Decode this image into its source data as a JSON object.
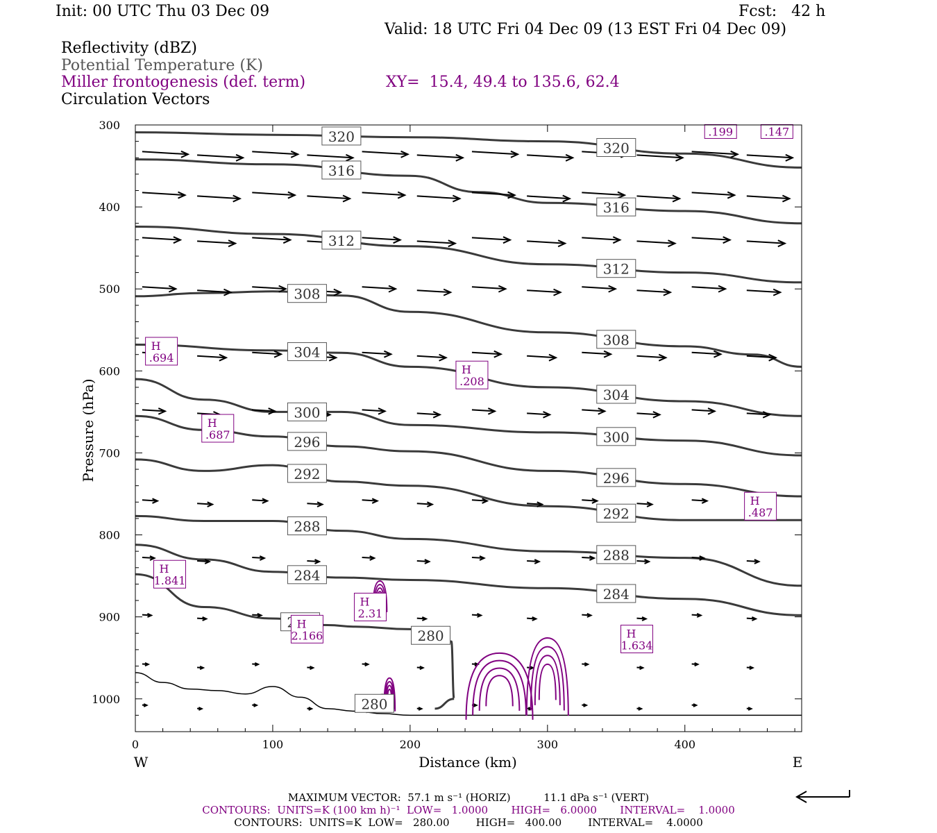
{
  "header": {
    "init": "Init: 00 UTC Thu 03 Dec 09",
    "fcst": "Fcst:   42 h",
    "valid": "Valid: 18 UTC Fri 04 Dec 09 (13 EST Fri 04 Dec 09)",
    "field1": "Reflectivity (dBZ)",
    "field2": "Potential Temperature (K)",
    "field3": "Miller frontogenesis (def. term)",
    "xy": "XY=  15.4, 49.4 to 135.6, 62.4",
    "field4": "Circulation Vectors"
  },
  "colors": {
    "theta": "#3a3a3a",
    "fronto": "#800080",
    "vectors": "#000000"
  },
  "chart_data": {
    "type": "line",
    "xlabel": "Distance (km)",
    "ylabel": "Pressure (hPa)",
    "xlim": [
      0,
      485
    ],
    "ylim": [
      300,
      1040
    ],
    "y_scale": "linear-inverted",
    "x_ticks": [
      "0",
      "100",
      "200",
      "300",
      "400"
    ],
    "x_tick_values": [
      0,
      100,
      200,
      300,
      400
    ],
    "y_ticks": [
      "300",
      "400",
      "500",
      "600",
      "700",
      "800",
      "900",
      "1000"
    ],
    "y_tick_values": [
      300,
      400,
      500,
      600,
      700,
      800,
      900,
      1000
    ],
    "left_label": "W",
    "right_label": "E",
    "theta_contours": [
      {
        "value": 320,
        "x": [
          0,
          100,
          200,
          300,
          400,
          485
        ],
        "p": [
          309,
          312,
          315,
          320,
          335,
          352
        ]
      },
      {
        "value": 316,
        "x": [
          0,
          100,
          200,
          250,
          300,
          400,
          485
        ],
        "p": [
          342,
          348,
          362,
          382,
          395,
          405,
          420
        ]
      },
      {
        "value": 312,
        "x": [
          0,
          100,
          200,
          300,
          400,
          485
        ],
        "p": [
          424,
          433,
          448,
          470,
          480,
          492
        ]
      },
      {
        "value": 308,
        "x": [
          0,
          50,
          100,
          150,
          200,
          300,
          400,
          450,
          485
        ],
        "p": [
          509,
          505,
          503,
          508,
          528,
          553,
          570,
          580,
          595
        ]
      },
      {
        "value": 304,
        "x": [
          0,
          100,
          150,
          200,
          300,
          400,
          485
        ],
        "p": [
          568,
          575,
          578,
          595,
          620,
          637,
          655
        ]
      },
      {
        "value": 300,
        "x": [
          0,
          50,
          100,
          150,
          200,
          300,
          400,
          485
        ],
        "p": [
          610,
          635,
          650,
          650,
          666,
          675,
          685,
          703
        ]
      },
      {
        "value": 296,
        "x": [
          0,
          50,
          100,
          150,
          200,
          300,
          400,
          485
        ],
        "p": [
          655,
          672,
          680,
          692,
          698,
          722,
          738,
          753
        ]
      },
      {
        "value": 292,
        "x": [
          0,
          50,
          100,
          150,
          200,
          300,
          400,
          485
        ],
        "p": [
          708,
          722,
          715,
          735,
          740,
          765,
          782,
          782
        ]
      },
      {
        "value": 288,
        "x": [
          0,
          50,
          100,
          150,
          200,
          300,
          400,
          485
        ],
        "p": [
          777,
          783,
          783,
          795,
          805,
          820,
          828,
          862
        ]
      },
      {
        "value": 284,
        "x": [
          0,
          50,
          100,
          150,
          200,
          300,
          400,
          485
        ],
        "p": [
          812,
          830,
          845,
          852,
          855,
          865,
          878,
          898
        ]
      },
      {
        "value": 280,
        "x": [
          0,
          50,
          100,
          140,
          160,
          200,
          230,
          232,
          218
        ],
        "p": [
          848,
          888,
          902,
          910,
          912,
          915,
          930,
          1000,
          1012
        ]
      },
      {
        "value": 280,
        "x": [
          168,
          180,
          185
        ],
        "p": [
          1016,
          995,
          1015
        ]
      }
    ],
    "fronto_maxima": [
      {
        "label": "H",
        "value": ".694",
        "x": 19,
        "p": 576
      },
      {
        "label": "H",
        "value": ".208",
        "x": 245,
        "p": 605
      },
      {
        "label": "H",
        "value": ".687",
        "x": 60,
        "p": 670
      },
      {
        "label": "H",
        "value": "1.841",
        "x": 25,
        "p": 848
      },
      {
        "label": "H",
        "value": "2.166",
        "x": 125,
        "p": 915
      },
      {
        "label": "H",
        "value": "2.31",
        "x": 171,
        "p": 888
      },
      {
        "label": "H",
        "value": "1.634",
        "x": 365,
        "p": 927
      },
      {
        "label": "H",
        "value": ".487",
        "x": 455,
        "p": 765
      },
      {
        "label": "",
        "value": ".199",
        "x": 426,
        "p": 308
      },
      {
        "label": "",
        "value": ".147",
        "x": 467,
        "p": 308
      }
    ],
    "vectors": {
      "x": [
        0,
        40,
        80,
        120,
        160,
        200,
        240,
        280,
        320,
        360,
        400,
        440
      ],
      "p": [
        335,
        385,
        440,
        500,
        580,
        650,
        760,
        830,
        900,
        960,
        1010
      ],
      "u_by_level": [
        30,
        28,
        25,
        22,
        19,
        15,
        10,
        8,
        6,
        4,
        3
      ]
    },
    "terrain_pressure": {
      "x": [
        0,
        20,
        40,
        60,
        80,
        100,
        120,
        140,
        160,
        180,
        200,
        250,
        300,
        350,
        400,
        485
      ],
      "p": [
        968,
        980,
        988,
        990,
        994,
        985,
        998,
        1012,
        1015,
        1018,
        1020,
        1020,
        1020,
        1020,
        1020,
        1020
      ]
    }
  },
  "footer": {
    "max_vector": "MAXIMUM VECTOR:  57.1 m s⁻¹ (HORIZ)          11.1 dPa s⁻¹ (VERT)",
    "contours1": "CONTOURS:  UNITS=K (100 km h)⁻¹  LOW=   1.0000       HIGH=   6.0000       INTERVAL=    1.0000",
    "contours2": "CONTOURS:  UNITS=K  LOW=   280.00        HIGH=   400.00        INTERVAL=    4.0000"
  }
}
